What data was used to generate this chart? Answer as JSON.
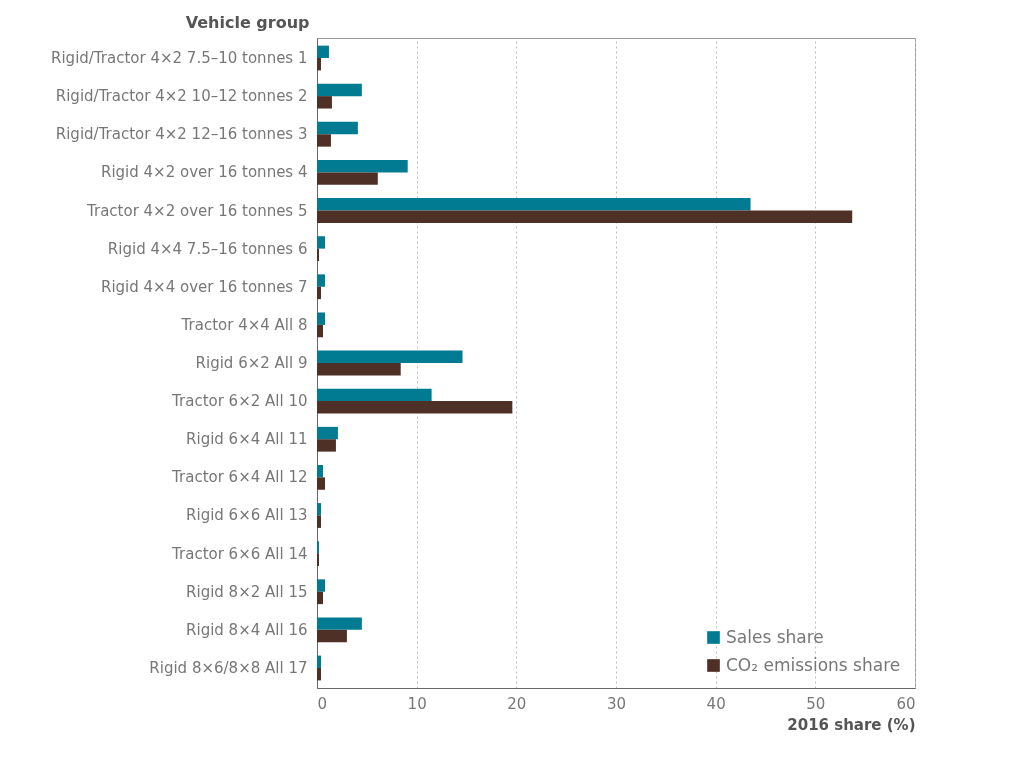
{
  "chart_data": {
    "type": "bar",
    "orientation": "horizontal",
    "ylabel": "Vehicle group",
    "xlabel": "2016 share (%)",
    "categories": [
      "Rigid/Tractor 4×2 7.5–10 tonnes   1",
      "Rigid/Tractor 4×2 10–12 tonnes   2",
      "Rigid/Tractor 4×2 12–16 tonnes   3",
      "Rigid 4×2 over 16 tonnes   4",
      "Tractor 4×2 over 16 tonnes   5",
      "Rigid 4×4 7.5–16 tonnes   6",
      "Rigid 4×4 over 16 tonnes   7",
      "Tractor 4×4 All   8",
      "Rigid 6×2 All   9",
      "Tractor 6×2 All   10",
      "Rigid 6×4 All   11",
      "Tractor 6×4 All   12",
      "Rigid 6×6 All   13",
      "Tractor 6×6 All   14",
      "Rigid 8×2 All   15",
      "Rigid 8×4 All   16",
      "Rigid 8×6/8×8 All   17"
    ],
    "series": [
      {
        "name": "Sales share",
        "color": "#007b92",
        "values": [
          1.2,
          4.5,
          4.1,
          9.1,
          43.5,
          0.8,
          0.8,
          0.8,
          14.6,
          11.5,
          2.1,
          0.6,
          0.4,
          0.2,
          0.8,
          4.5,
          0.4
        ]
      },
      {
        "name": "CO₂ emissions share",
        "color": "#4e3027",
        "values": [
          0.4,
          1.5,
          1.4,
          6.1,
          53.7,
          0.2,
          0.4,
          0.6,
          8.4,
          19.6,
          1.9,
          0.8,
          0.4,
          0.2,
          0.6,
          3.0,
          0.4
        ]
      }
    ],
    "xlim": [
      0,
      60
    ],
    "xticks": [
      0,
      10,
      20,
      30,
      40,
      50,
      60
    ],
    "grid": "x",
    "legend": "bottom right"
  }
}
